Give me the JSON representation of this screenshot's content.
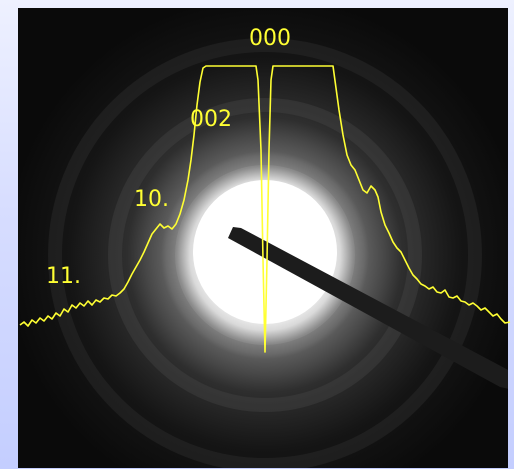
{
  "figure": {
    "peak_labels": [
      "000",
      "002",
      "10.",
      "11."
    ],
    "colors": {
      "background_top": "#eef1ff",
      "background_bottom": "#c4ceff",
      "pattern_frame": "#060606",
      "profile_and_labels": "#ffff33",
      "central_beam": "#ffffff",
      "beam_stop": "#1a1a1a"
    }
  }
}
